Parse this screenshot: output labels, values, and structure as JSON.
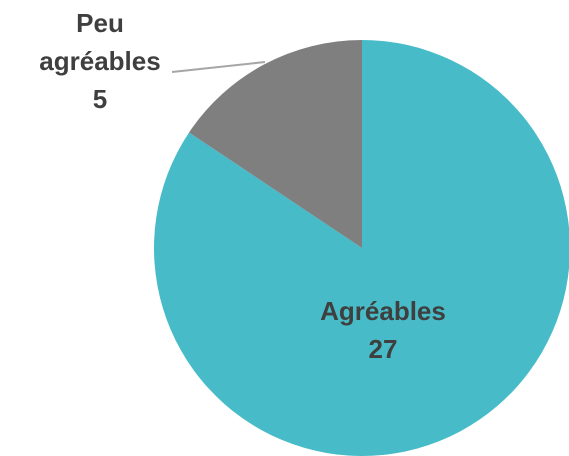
{
  "chart_data": {
    "type": "pie",
    "categories": [
      "Agréables",
      "Peu agréables"
    ],
    "values": [
      27,
      5
    ],
    "colors": [
      "#47bcc8",
      "#7f7f7f"
    ]
  }
}
